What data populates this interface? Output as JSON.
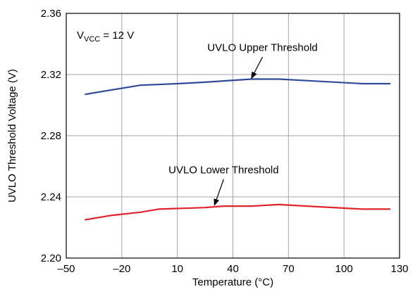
{
  "chart_data": {
    "type": "line",
    "xlabel": "Temperature (°C)",
    "ylabel": "UVLO Threshold Voltage (V)",
    "xlim": [
      -50,
      130
    ],
    "ylim": [
      2.2,
      2.36
    ],
    "x_ticks": [
      "–50",
      "–20",
      "10",
      "40",
      "70",
      "100",
      "130"
    ],
    "x_tick_values": [
      -50,
      -20,
      10,
      40,
      70,
      100,
      130
    ],
    "y_ticks": [
      "2.20",
      "2.24",
      "2.28",
      "2.32",
      "2.36"
    ],
    "y_tick_values": [
      2.2,
      2.24,
      2.28,
      2.32,
      2.36
    ],
    "grid": true,
    "condition": {
      "prefix": "V",
      "subscript": "VCC",
      "suffix": " = 12 V"
    },
    "series": [
      {
        "name": "UVLO Upper Threshold",
        "color": "#2f4a9b",
        "x": [
          -40,
          -25,
          -10,
          10,
          25,
          50,
          65,
          80,
          110,
          125
        ],
        "y": [
          2.307,
          2.31,
          2.313,
          2.314,
          2.315,
          2.317,
          2.317,
          2.316,
          2.314,
          2.314
        ]
      },
      {
        "name": "UVLO Lower Threshold",
        "color": "#e0242c",
        "x": [
          -40,
          -25,
          -10,
          0,
          25,
          35,
          50,
          65,
          80,
          110,
          125
        ],
        "y": [
          2.225,
          2.228,
          2.23,
          2.232,
          2.233,
          2.234,
          2.234,
          2.235,
          2.234,
          2.232,
          2.232
        ]
      }
    ],
    "annotations": [
      {
        "text": "UVLO Upper Threshold",
        "label_x": 56,
        "label_y": 2.3355,
        "arrow_from_x": 56,
        "arrow_from_y": 2.3315,
        "arrow_to_x": 50,
        "arrow_to_y": 2.3175
      },
      {
        "text": "UVLO Lower Threshold",
        "label_x": 35,
        "label_y": 2.2555,
        "arrow_from_x": 35,
        "arrow_from_y": 2.2515,
        "arrow_to_x": 30,
        "arrow_to_y": 2.2345
      }
    ]
  }
}
